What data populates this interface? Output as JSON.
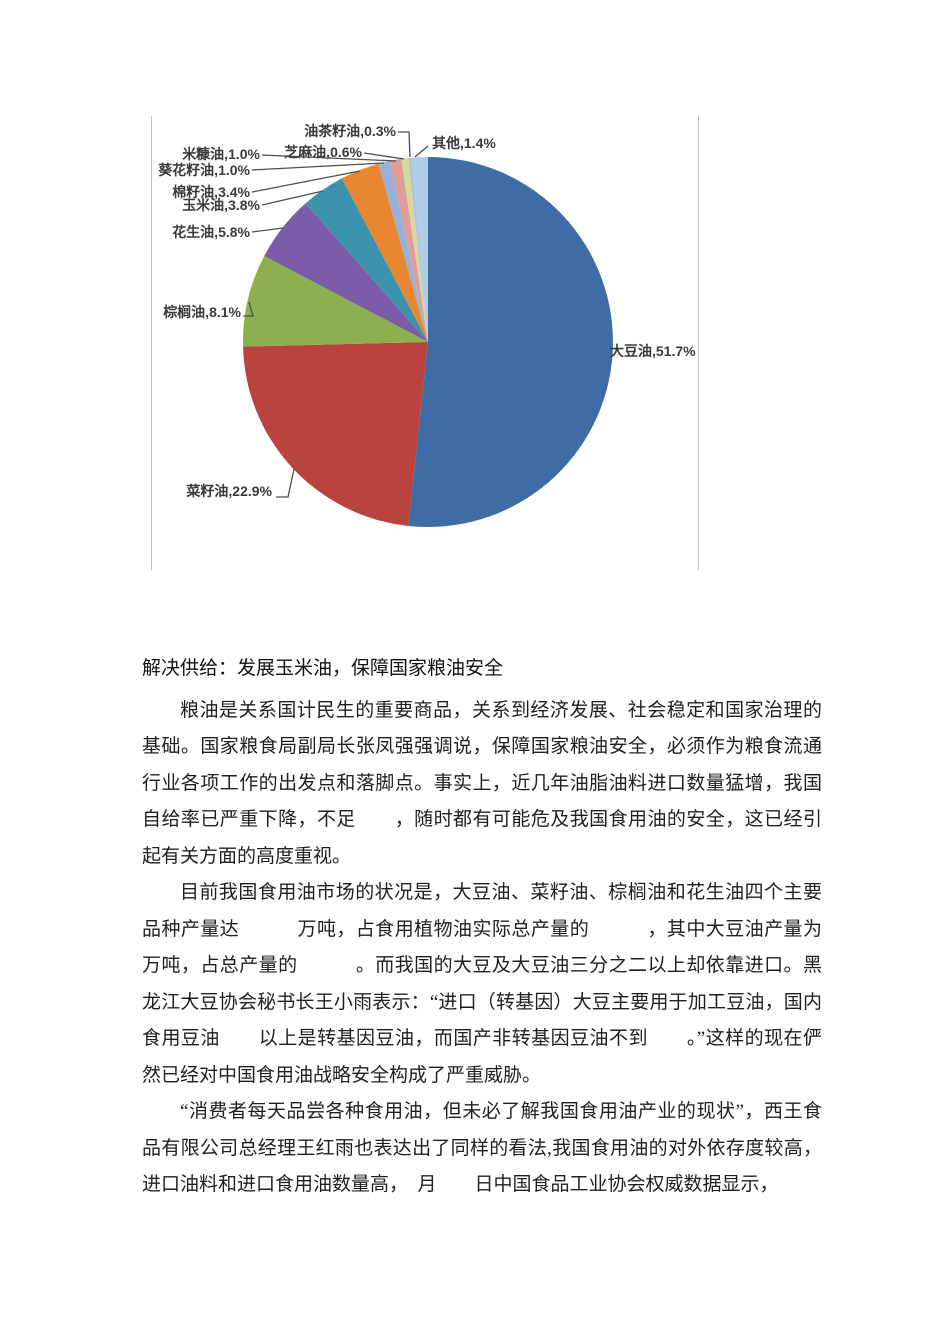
{
  "chart_data": {
    "type": "pie",
    "title": "",
    "legend_position": "none",
    "labels_style": "outside-with-leader-lines",
    "start_angle_deg": 0,
    "direction": "clockwise",
    "slices": [
      {
        "label": "大豆油",
        "value": 51.7,
        "display": "大豆油,51.7%",
        "color": "#3E6DA5"
      },
      {
        "label": "菜籽油",
        "value": 22.9,
        "display": "菜籽油,22.9%",
        "color": "#B9433E"
      },
      {
        "label": "棕榈油",
        "value": 8.1,
        "display": "棕榈油,8.1%",
        "color": "#8CB04D"
      },
      {
        "label": "花生油",
        "value": 5.8,
        "display": "花生油,5.8%",
        "color": "#7A5DA6"
      },
      {
        "label": "玉米油",
        "value": 3.8,
        "display": "玉米油,3.8%",
        "color": "#3C93AE"
      },
      {
        "label": "棉籽油",
        "value": 3.4,
        "display": "棉籽油,3.4%",
        "color": "#E8872F"
      },
      {
        "label": "葵花籽油",
        "value": 1.0,
        "display": "葵花籽油,1.0%",
        "color": "#97B1D9"
      },
      {
        "label": "米糠油",
        "value": 1.0,
        "display": "米糠油,1.0%",
        "color": "#DF9D97"
      },
      {
        "label": "芝麻油",
        "value": 0.6,
        "display": "芝麻油,0.6%",
        "color": "#D5DA9B"
      },
      {
        "label": "油茶籽油",
        "value": 0.3,
        "display": "油茶籽油,0.3%",
        "color": "#B9BFDE"
      },
      {
        "label": "其他",
        "value": 1.4,
        "display": "其他,1.4%",
        "color": "#ADCEE4"
      }
    ]
  },
  "document": {
    "heading": "解决供给：发展玉米油，保障国家粮油安全",
    "paragraphs": [
      "粮油是关系国计民生的重要商品，关系到经济发展、社会稳定和国家治理的基础。国家粮食局副局长张凤强强调说，保障国家粮油安全，必须作为粮食流通行业各项工作的出发点和落脚点。事实上，近几年油脂油料进口数量猛增，我国自给率已严重下降，不足　　，随时都有可能危及我国食用油的安全，这已经引起有关方面的高度重视。",
      "目前我国食用油市场的状况是，大豆油、菜籽油、棕榈油和花生油四个主要品种产量达　　　万吨，占食用植物油实际总产量的　　　，其中大豆油产量为　　　万吨，占总产量的　　　。而我国的大豆及大豆油三分之二以上却依靠进口。黑龙江大豆协会秘书长王小雨表示：“进口（转基因）大豆主要用于加工豆油，国内食用豆油　　以上是转基因豆油，而国产非转基因豆油不到　　。”这样的现在俨然已经对中国食用油战略安全构成了严重威胁。",
      "“消费者每天品尝各种食用油，但未必了解我国食用油产业的现状”，西王食品有限公司总经理王红雨也表达出了同样的看法,我国食用油的对外依存度较高，进口油料和进口食用油数量高，　月　　日中国食品工业协会权威数据显示，"
    ]
  }
}
